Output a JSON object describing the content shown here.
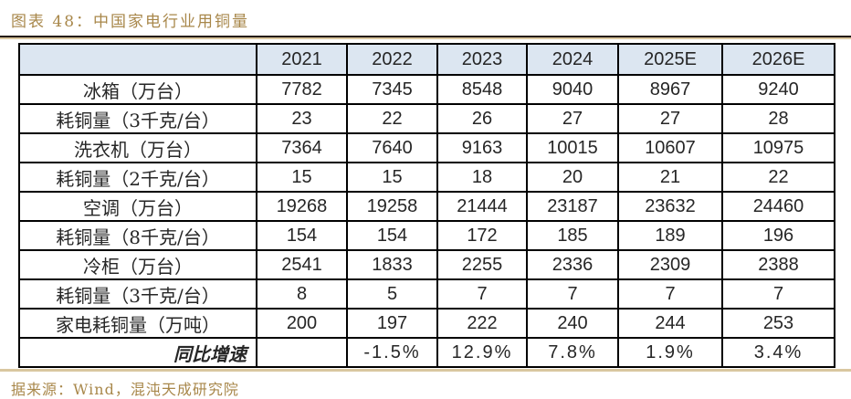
{
  "title": "图表 48：中国家电行业用铜量",
  "source": "据来源：Wind，混沌天成研究院",
  "colors": {
    "title_gold": "#a8874a",
    "header_fill": "#dce6f1",
    "table_border": "#000000",
    "rule_dark": "#221508",
    "rule_tan": "#d9c7a0"
  },
  "chart_data": {
    "type": "table",
    "title": "中国家电行业用铜量",
    "columns": [
      "",
      "2021",
      "2022",
      "2023",
      "2024",
      "2025E",
      "2026E"
    ],
    "rows": [
      {
        "label": "冰箱（万台）",
        "align": "center",
        "emphasis": false,
        "values": [
          "7782",
          "7345",
          "8548",
          "9040",
          "8967",
          "9240"
        ]
      },
      {
        "label": "耗铜量（3千克/台）",
        "align": "center",
        "emphasis": false,
        "values": [
          "23",
          "22",
          "26",
          "27",
          "27",
          "28"
        ]
      },
      {
        "label": "洗衣机（万台）",
        "align": "center",
        "emphasis": false,
        "values": [
          "7364",
          "7640",
          "9163",
          "10015",
          "10607",
          "10975"
        ]
      },
      {
        "label": "耗铜量（2千克/台）",
        "align": "center",
        "emphasis": false,
        "values": [
          "15",
          "15",
          "18",
          "20",
          "21",
          "22"
        ]
      },
      {
        "label": "空调（万台）",
        "align": "center",
        "emphasis": false,
        "values": [
          "19268",
          "19258",
          "21444",
          "23187",
          "23632",
          "24460"
        ]
      },
      {
        "label": "耗铜量（8千克/台）",
        "align": "center",
        "emphasis": false,
        "values": [
          "154",
          "154",
          "172",
          "185",
          "189",
          "196"
        ]
      },
      {
        "label": "冷柜（万台）",
        "align": "center",
        "emphasis": false,
        "values": [
          "2541",
          "1833",
          "2255",
          "2336",
          "2309",
          "2388"
        ]
      },
      {
        "label": "耗铜量（3千克/台）",
        "align": "center",
        "emphasis": false,
        "values": [
          "8",
          "5",
          "7",
          "7",
          "7",
          "7"
        ]
      },
      {
        "label": "家电耗铜量（万吨）",
        "align": "center",
        "emphasis": false,
        "values": [
          "200",
          "197",
          "222",
          "240",
          "244",
          "253"
        ]
      },
      {
        "label": "同比增速",
        "align": "right",
        "emphasis": true,
        "percent_row": true,
        "values": [
          "",
          "-1.5%",
          "12.9%",
          "7.8%",
          "1.9%",
          "3.4%"
        ]
      }
    ]
  }
}
